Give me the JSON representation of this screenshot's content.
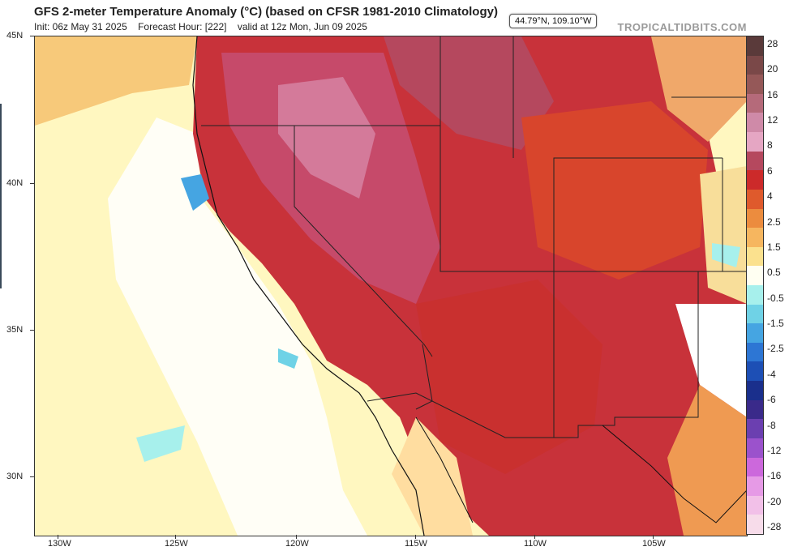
{
  "header": {
    "title": "GFS 2-meter Temperature Anomaly (°C) (based on CFSR 1981-2010 Climatology)",
    "init": "Init: 06z May 31 2025",
    "forecast_hour": "Forecast Hour: [222]",
    "valid": "valid at 12z Mon, Jun 09 2025",
    "brand": "TROPICALTIDBITS.COM"
  },
  "cursor_readout": "44.79°N, 109.10°W",
  "axes": {
    "latitude_labels": [
      "45N",
      "40N",
      "35N",
      "30N"
    ],
    "longitude_labels": [
      "130W",
      "125W",
      "120W",
      "115W",
      "110W",
      "105W"
    ]
  },
  "colorbar": {
    "labels": [
      "28",
      "20",
      "16",
      "12",
      "8",
      "6",
      "4",
      "2.5",
      "1.5",
      "0.5",
      "-0.5",
      "-1.5",
      "-2.5",
      "-4",
      "-6",
      "-8",
      "-12",
      "-16",
      "-20",
      "-28"
    ],
    "colors": [
      "#5a3a3a",
      "#7a4848",
      "#955858",
      "#b56a7a",
      "#cf8aa8",
      "#e5a6c3",
      "#b5485e",
      "#cc2a2a",
      "#df5a2c",
      "#ec8c3e",
      "#f6b65f",
      "#fbe18e",
      "#fffff2",
      "#a7f0ec",
      "#6fd2e6",
      "#45a5e2",
      "#2d76d4",
      "#1d4fb5",
      "#1a2f8c",
      "#3a2a8a",
      "#6b3fb0",
      "#9b52cc",
      "#cc68dc",
      "#e69ae6",
      "#f2c0e8",
      "#f7dcea"
    ]
  }
}
